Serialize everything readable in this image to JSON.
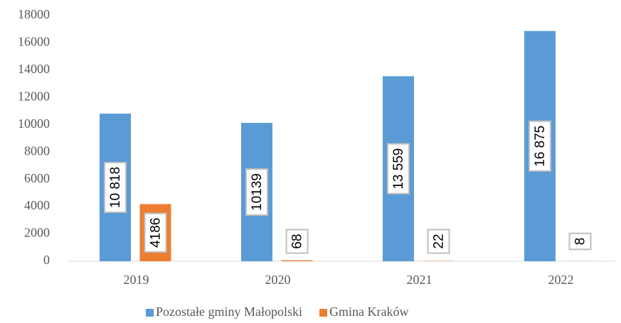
{
  "chart_data": {
    "type": "bar",
    "categories": [
      "2019",
      "2020",
      "2021",
      "2022"
    ],
    "series": [
      {
        "name": "Pozostałe gminy Małopolski",
        "color": "#5b9bd5",
        "values": [
          10818,
          10139,
          13559,
          16875
        ],
        "value_labels": [
          "10 818",
          "10139",
          "13 559",
          "16 875"
        ]
      },
      {
        "name": "Gmina Kraków",
        "color": "#ed7d31",
        "values": [
          4186,
          68,
          22,
          8
        ]
      }
    ],
    "ylim": [
      0,
      18000
    ],
    "yticks": [
      0,
      2000,
      4000,
      6000,
      8000,
      10000,
      12000,
      14000,
      16000,
      18000
    ],
    "grid": false,
    "legend": "bottom"
  }
}
